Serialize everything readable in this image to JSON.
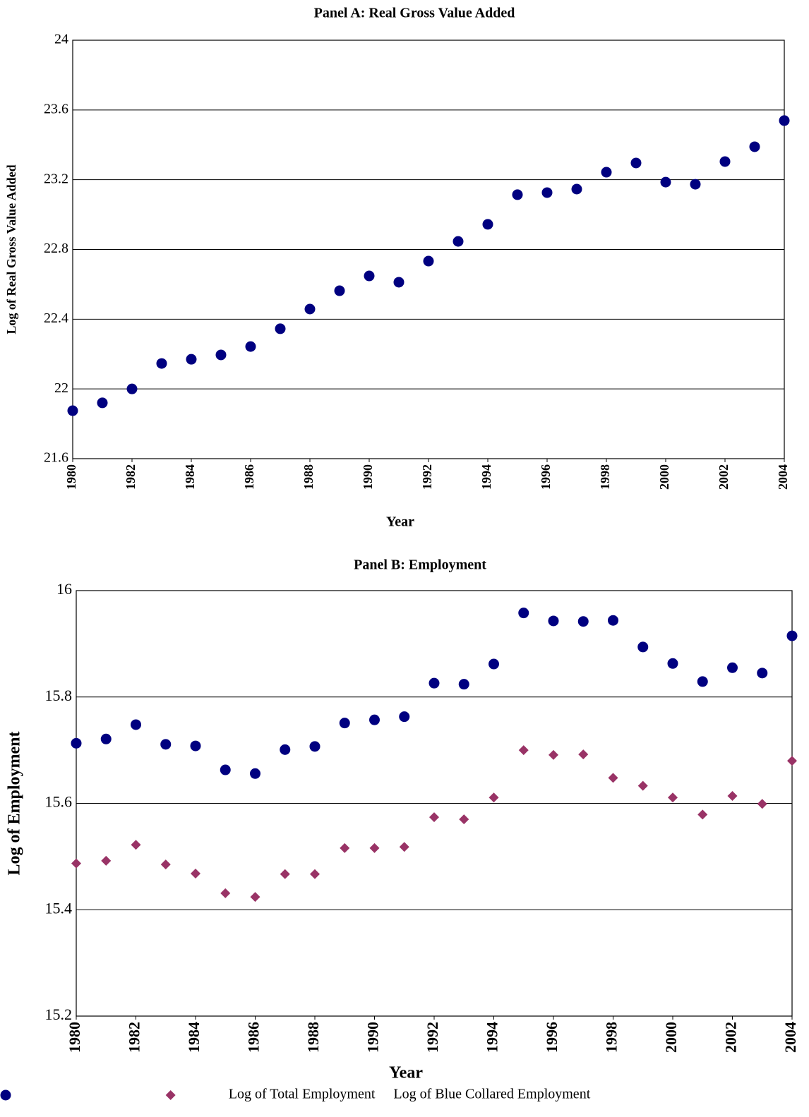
{
  "chart_data": [
    {
      "type": "scatter",
      "title": "Panel A: Real Gross Value Added",
      "x_label": "Year",
      "y_label": "Log of Real Gross Value Added",
      "x": [
        1980,
        1981,
        1982,
        1983,
        1984,
        1985,
        1986,
        1987,
        1988,
        1989,
        1990,
        1991,
        1992,
        1993,
        1994,
        1995,
        1996,
        1997,
        1998,
        1999,
        2000,
        2001,
        2002,
        2003,
        2004
      ],
      "values": [
        21.875,
        21.92,
        22.0,
        22.146,
        22.17,
        22.195,
        22.243,
        22.345,
        22.458,
        22.563,
        22.648,
        22.612,
        22.733,
        22.846,
        22.944,
        23.114,
        23.126,
        23.146,
        23.243,
        23.296,
        23.186,
        23.174,
        23.304,
        23.389,
        23.539
      ],
      "color": "#000080",
      "marker": "circle",
      "xlim": [
        1980,
        2004
      ],
      "xticks": [
        1980,
        1982,
        1984,
        1986,
        1988,
        1990,
        1992,
        1994,
        1996,
        1998,
        2000,
        2002,
        2004
      ],
      "ylim": [
        21.6,
        24
      ],
      "yticks": [
        21.6,
        22,
        22.4,
        22.8,
        23.2,
        23.6,
        24
      ],
      "grid": true
    },
    {
      "type": "scatter",
      "title": "Panel B: Employment",
      "x_label": "Year",
      "y_label": "Log of Employment",
      "x": [
        1980,
        1981,
        1982,
        1983,
        1984,
        1985,
        1986,
        1987,
        1988,
        1989,
        1990,
        1991,
        1992,
        1993,
        1994,
        1995,
        1996,
        1997,
        1998,
        1999,
        2000,
        2001,
        2002,
        2003,
        2004
      ],
      "series": [
        {
          "name": "Log of Total Employment",
          "color": "#000080",
          "marker": "circle",
          "values": [
            15.713,
            15.721,
            15.748,
            15.711,
            15.708,
            15.663,
            15.656,
            15.701,
            15.707,
            15.751,
            15.757,
            15.763,
            15.826,
            15.824,
            15.862,
            15.958,
            15.943,
            15.942,
            15.944,
            15.894,
            15.863,
            15.829,
            15.855,
            15.845,
            15.915
          ]
        },
        {
          "name": "Log of Blue Collared Employment",
          "color": "#993366",
          "marker": "diamond",
          "values": [
            15.487,
            15.492,
            15.522,
            15.485,
            15.468,
            15.431,
            15.424,
            15.467,
            15.467,
            15.516,
            15.516,
            15.518,
            15.574,
            15.57,
            15.611,
            15.7,
            15.691,
            15.692,
            15.648,
            15.633,
            15.611,
            15.579,
            15.614,
            15.599,
            15.68
          ]
        }
      ],
      "xlim": [
        1980,
        2004
      ],
      "xticks": [
        1980,
        1982,
        1984,
        1986,
        1988,
        1990,
        1992,
        1994,
        1996,
        1998,
        2000,
        2002,
        2004
      ],
      "ylim": [
        15.2,
        16
      ],
      "yticks": [
        15.2,
        15.4,
        15.6,
        15.8,
        16
      ],
      "grid": true,
      "legend": "bottom"
    }
  ]
}
